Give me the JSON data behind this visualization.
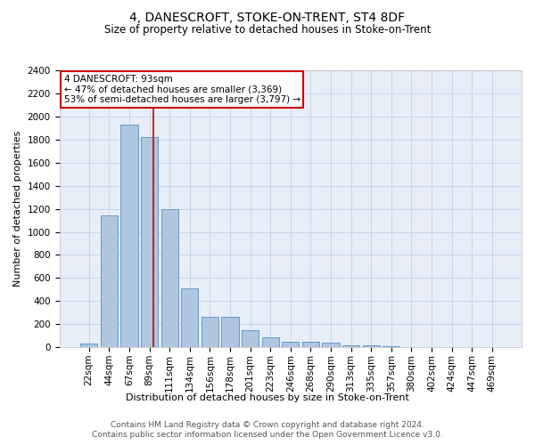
{
  "title": "4, DANESCROFT, STOKE-ON-TRENT, ST4 8DF",
  "subtitle": "Size of property relative to detached houses in Stoke-on-Trent",
  "xlabel": "Distribution of detached houses by size in Stoke-on-Trent",
  "ylabel": "Number of detached properties",
  "categories": [
    "22sqm",
    "44sqm",
    "67sqm",
    "89sqm",
    "111sqm",
    "134sqm",
    "156sqm",
    "178sqm",
    "201sqm",
    "223sqm",
    "246sqm",
    "268sqm",
    "290sqm",
    "313sqm",
    "335sqm",
    "357sqm",
    "380sqm",
    "402sqm",
    "424sqm",
    "447sqm",
    "469sqm"
  ],
  "values": [
    30,
    1140,
    1930,
    1820,
    1200,
    510,
    265,
    265,
    150,
    90,
    50,
    45,
    40,
    20,
    15,
    10,
    5,
    3,
    2,
    2,
    5
  ],
  "bar_color": "#aec6e0",
  "bar_edge_color": "#6699cc",
  "red_line_x": 3.18,
  "annotation_text_line1": "4 DANESCROFT: 93sqm",
  "annotation_text_line2": "← 47% of detached houses are smaller (3,369)",
  "annotation_text_line3": "53% of semi-detached houses are larger (3,797) →",
  "annotation_box_facecolor": "#ffffff",
  "annotation_box_edgecolor": "#cc0000",
  "red_line_color": "#cc0000",
  "ylim": [
    0,
    2400
  ],
  "yticks": [
    0,
    200,
    400,
    600,
    800,
    1000,
    1200,
    1400,
    1600,
    1800,
    2000,
    2200,
    2400
  ],
  "grid_color": "#c8d4e8",
  "bg_color": "#e8eef8",
  "footer_line1": "Contains HM Land Registry data © Crown copyright and database right 2024.",
  "footer_line2": "Contains public sector information licensed under the Open Government Licence v3.0.",
  "title_fontsize": 10,
  "subtitle_fontsize": 8.5,
  "axis_label_fontsize": 8,
  "tick_fontsize": 7.5,
  "annotation_fontsize": 7.5,
  "footer_fontsize": 6.5
}
